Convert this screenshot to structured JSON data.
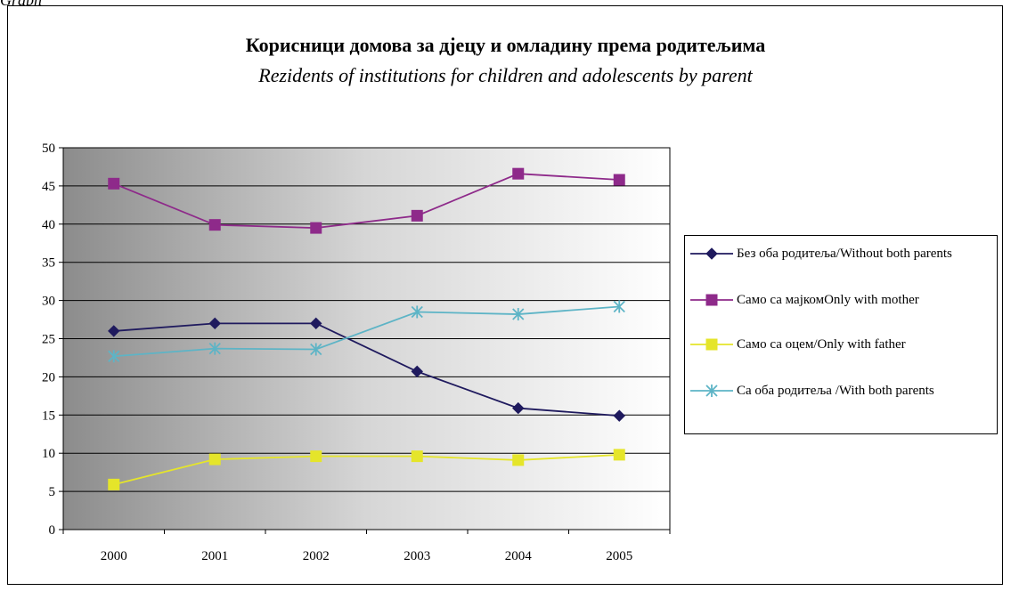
{
  "corner_label": "Graph",
  "chart_data": {
    "type": "line",
    "title": "Корисници домова за дјецу и омладину према родитељима",
    "subtitle": "Rezidents of institutions for children and adolescents by parent",
    "categories": [
      "2000",
      "2001",
      "2002",
      "2003",
      "2004",
      "2005"
    ],
    "ylim": [
      0,
      50
    ],
    "yticks": [
      0,
      5,
      10,
      15,
      20,
      25,
      30,
      35,
      40,
      45,
      50
    ],
    "grid": true,
    "legend_position": "right",
    "series": [
      {
        "name": "Без оба родитеља/Without both parents",
        "color": "#1f1a5e",
        "marker": "diamond",
        "values": [
          26.0,
          27.0,
          27.0,
          20.7,
          15.9,
          14.9
        ]
      },
      {
        "name": "Само са мајкомOnly with mother",
        "color": "#8e2a8a",
        "marker": "square",
        "values": [
          45.3,
          39.9,
          39.5,
          41.1,
          46.6,
          45.8
        ]
      },
      {
        "name": "Само са оцем/Only with father",
        "color": "#e5e52a",
        "marker": "square",
        "values": [
          5.9,
          9.2,
          9.6,
          9.6,
          9.1,
          9.8
        ]
      },
      {
        "name": "Са оба родитеља /With both parents",
        "color": "#5db4c6",
        "marker": "asterisk",
        "values": [
          22.7,
          23.7,
          23.6,
          28.5,
          28.2,
          29.2
        ]
      }
    ]
  }
}
